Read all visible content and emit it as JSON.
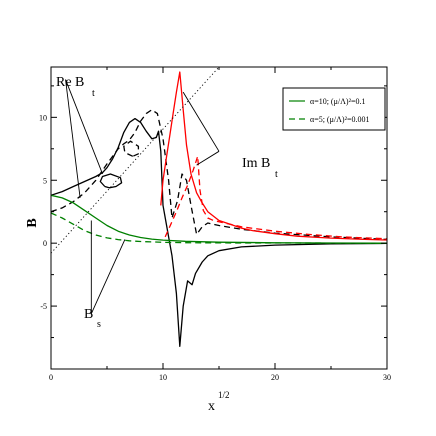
{
  "chart_data": {
    "type": "line",
    "title": "",
    "xlabel": "x",
    "xlabel_exp": "1/2",
    "ylabel": "B",
    "xlim": [
      0,
      30
    ],
    "ylim": [
      -10,
      14
    ],
    "x_ticks": [
      0,
      10,
      20,
      30
    ],
    "y_ticks": [
      -5,
      0,
      5,
      10
    ],
    "grid": false,
    "legend_position": "top-right",
    "legend": [
      {
        "label": "α=10; (μ/Λ)²=0.1",
        "color": "#008000",
        "dash": "solid"
      },
      {
        "label": "α=5; (μ/Λ)²=0.001",
        "color": "#008000",
        "dash": "dashed"
      }
    ],
    "annotations": [
      {
        "id": "re",
        "main": "Re B",
        "sub": "t"
      },
      {
        "id": "im",
        "main": "Im B",
        "sub": "t"
      },
      {
        "id": "bs",
        "main": "B",
        "sub": "s"
      }
    ],
    "series": [
      {
        "component": "Re B_t",
        "case": "α=10",
        "color": "#000000",
        "dash": "solid",
        "points": [
          [
            0,
            3.8
          ],
          [
            1,
            4.1
          ],
          [
            2,
            4.5
          ],
          [
            3,
            4.9
          ],
          [
            4,
            5.3
          ],
          [
            4.6,
            5.6
          ],
          [
            5,
            6.0
          ],
          [
            5.5,
            6.7
          ],
          [
            6,
            7.6
          ],
          [
            6.5,
            8.8
          ],
          [
            7,
            9.6
          ],
          [
            7.5,
            9.9
          ],
          [
            8,
            9.6
          ],
          [
            8.5,
            8.9
          ],
          [
            9,
            8.3
          ],
          [
            9.4,
            8.4
          ],
          [
            9.6,
            8.9
          ],
          [
            9.8,
            7.3
          ],
          [
            10,
            3.0
          ],
          [
            10.4,
            1.0
          ],
          [
            10.8,
            -1.0
          ],
          [
            11.2,
            -4.0
          ],
          [
            11.5,
            -8.2
          ],
          [
            11.8,
            -5.0
          ],
          [
            12.2,
            -3.0
          ],
          [
            12.6,
            -3.3
          ],
          [
            12.9,
            -2.4
          ],
          [
            13.5,
            -1.5
          ],
          [
            14,
            -1.0
          ],
          [
            15,
            -0.6
          ],
          [
            17,
            -0.3
          ],
          [
            20,
            -0.15
          ],
          [
            25,
            -0.05
          ],
          [
            30,
            -0.02
          ]
        ]
      },
      {
        "component": "Re B_t",
        "case": "α=10",
        "color": "#000000",
        "dash": "solid",
        "points": [
          [
            4.8,
            4.5
          ],
          [
            4.4,
            4.9
          ],
          [
            4.6,
            5.3
          ],
          [
            5.3,
            5.5
          ],
          [
            6.2,
            5.2
          ],
          [
            6.3,
            4.8
          ],
          [
            5.8,
            4.5
          ],
          [
            5.2,
            4.4
          ],
          [
            4.8,
            4.5
          ]
        ]
      },
      {
        "component": "Re B_t",
        "case": "α=5",
        "color": "#000000",
        "dash": "dashed",
        "points": [
          [
            0,
            2.5
          ],
          [
            1,
            2.8
          ],
          [
            2,
            3.3
          ],
          [
            3,
            4.0
          ],
          [
            4,
            5.0
          ],
          [
            5,
            6.3
          ],
          [
            6,
            7.5
          ],
          [
            6.5,
            7.9
          ],
          [
            7,
            8.2
          ],
          [
            7.5,
            8.8
          ],
          [
            8,
            9.7
          ],
          [
            8.5,
            10.3
          ],
          [
            9,
            10.6
          ],
          [
            9.5,
            10.3
          ],
          [
            10,
            8.3
          ],
          [
            10.5,
            5.0
          ],
          [
            10.8,
            2.0
          ],
          [
            11.3,
            3.4
          ],
          [
            11.7,
            5.5
          ],
          [
            12.1,
            5.0
          ],
          [
            12.5,
            3.0
          ],
          [
            13,
            0.7
          ],
          [
            13.5,
            1.3
          ],
          [
            14,
            1.6
          ],
          [
            15,
            1.4
          ],
          [
            17,
            1.1
          ],
          [
            20,
            0.8
          ],
          [
            25,
            0.5
          ],
          [
            30,
            0.3
          ]
        ]
      },
      {
        "component": "Re B_t",
        "case": "α=5",
        "color": "#000000",
        "dash": "dashed",
        "points": [
          [
            7.3,
            6.9
          ],
          [
            6.6,
            7.2
          ],
          [
            6.5,
            7.7
          ],
          [
            7.1,
            8.1
          ],
          [
            7.8,
            7.7
          ],
          [
            7.8,
            7.1
          ],
          [
            7.3,
            6.9
          ]
        ]
      },
      {
        "component": "Im B_t",
        "case": "α=10",
        "color": "#ff0000",
        "dash": "solid",
        "points": [
          [
            9.8,
            3.0
          ],
          [
            10,
            5.0
          ],
          [
            10.3,
            6.8
          ],
          [
            10.6,
            8.5
          ],
          [
            10.9,
            10.3
          ],
          [
            11.2,
            12.0
          ],
          [
            11.5,
            13.6
          ],
          [
            11.8,
            10.6
          ],
          [
            12.1,
            7.8
          ],
          [
            12.5,
            5.5
          ],
          [
            13,
            4.0
          ],
          [
            13.5,
            3.2
          ],
          [
            14,
            2.5
          ],
          [
            15,
            1.8
          ],
          [
            16,
            1.5
          ],
          [
            17,
            1.2
          ],
          [
            18,
            1.0
          ],
          [
            20,
            0.75
          ],
          [
            22,
            0.55
          ],
          [
            25,
            0.4
          ],
          [
            28,
            0.3
          ],
          [
            30,
            0.25
          ]
        ]
      },
      {
        "component": "Im B_t",
        "case": "α=5",
        "color": "#ff0000",
        "dash": "dashed",
        "points": [
          [
            10.2,
            0.5
          ],
          [
            10.7,
            1.5
          ],
          [
            11.2,
            2.5
          ],
          [
            11.7,
            3.6
          ],
          [
            12.2,
            4.6
          ],
          [
            12.7,
            5.8
          ],
          [
            13.1,
            6.9
          ],
          [
            13.3,
            4.2
          ],
          [
            13.6,
            2.6
          ],
          [
            14,
            2.0
          ],
          [
            14.5,
            1.8
          ],
          [
            15,
            1.7
          ],
          [
            17,
            1.3
          ],
          [
            20,
            0.95
          ],
          [
            23,
            0.7
          ],
          [
            26,
            0.5
          ],
          [
            30,
            0.35
          ]
        ]
      },
      {
        "component": "B_s",
        "case": "α=10",
        "color": "#008000",
        "dash": "solid",
        "points": [
          [
            0,
            3.8
          ],
          [
            1,
            3.6
          ],
          [
            2,
            3.2
          ],
          [
            3,
            2.6
          ],
          [
            4,
            2.0
          ],
          [
            5,
            1.4
          ],
          [
            6,
            0.95
          ],
          [
            7,
            0.65
          ],
          [
            8,
            0.45
          ],
          [
            9,
            0.32
          ],
          [
            10,
            0.24
          ],
          [
            12,
            0.15
          ],
          [
            15,
            0.08
          ],
          [
            20,
            0.03
          ],
          [
            25,
            0.01
          ],
          [
            30,
            0.0
          ]
        ]
      },
      {
        "component": "B_s",
        "case": "α=5",
        "color": "#008000",
        "dash": "dashed",
        "points": [
          [
            0,
            2.4
          ],
          [
            1,
            2.0
          ],
          [
            2,
            1.5
          ],
          [
            3,
            1.0
          ],
          [
            4,
            0.65
          ],
          [
            5,
            0.42
          ],
          [
            6,
            0.28
          ],
          [
            7,
            0.19
          ],
          [
            8,
            0.13
          ],
          [
            10,
            0.07
          ],
          [
            12,
            0.04
          ],
          [
            15,
            0.02
          ],
          [
            20,
            0.01
          ],
          [
            30,
            0.0
          ]
        ]
      },
      {
        "component": "reference",
        "case": "",
        "color": "#000000",
        "dash": "dotted",
        "points": [
          [
            0,
            -0.8
          ],
          [
            15,
            14
          ]
        ]
      }
    ],
    "leaders": [
      {
        "label": "re",
        "points": [
          [
            2.6,
            3.6
          ],
          [
            1.3,
            13
          ]
        ]
      },
      {
        "label": "re",
        "points": [
          [
            4.6,
            5.5
          ],
          [
            1.3,
            13
          ]
        ]
      },
      {
        "label": "im",
        "points": [
          [
            11.8,
            12.0
          ],
          [
            15,
            7.3
          ]
        ]
      },
      {
        "label": "im",
        "points": [
          [
            13.0,
            6.2
          ],
          [
            15,
            7.3
          ]
        ]
      },
      {
        "label": "bs",
        "points": [
          [
            3.6,
            -5.6
          ],
          [
            3.6,
            1.8
          ]
        ]
      },
      {
        "label": "bs",
        "points": [
          [
            3.6,
            -5.6
          ],
          [
            6.6,
            0.3
          ]
        ]
      }
    ]
  }
}
